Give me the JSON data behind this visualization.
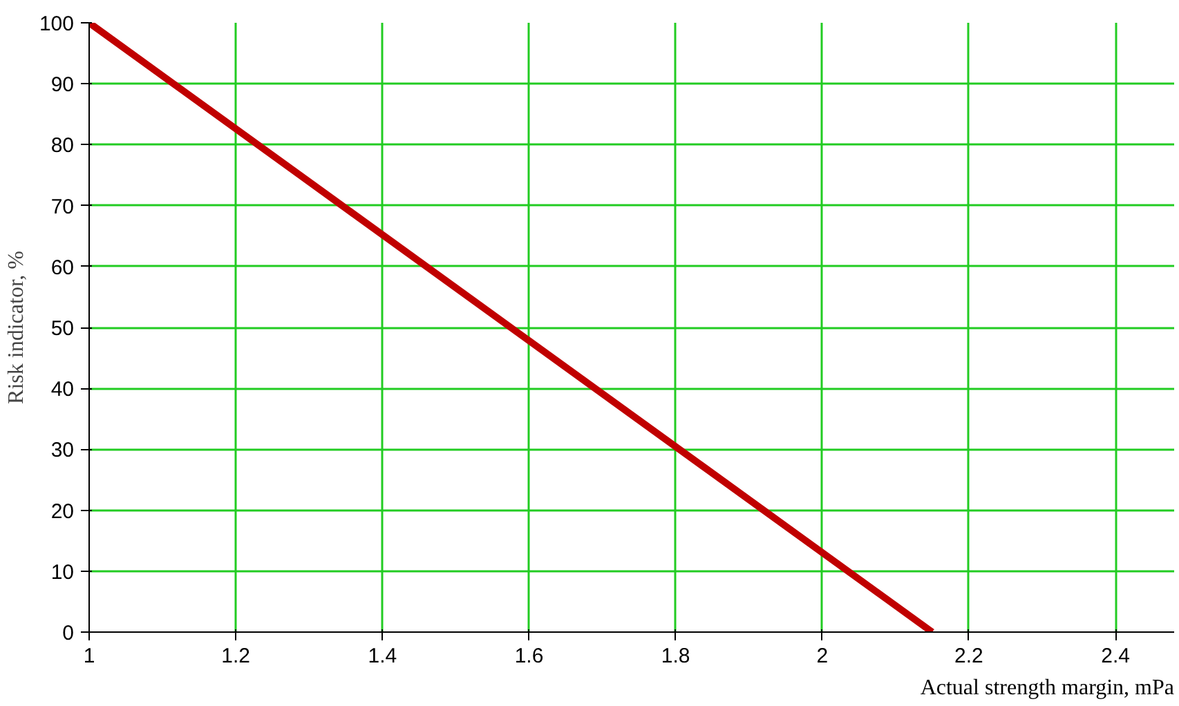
{
  "chart_data": {
    "type": "line",
    "xlabel": "Actual strength margin, mPa",
    "ylabel": "Risk indicator, %",
    "x": [
      1,
      2.15
    ],
    "series": [
      {
        "color": "#c00000",
        "values": [
          100,
          0
        ]
      }
    ],
    "xlim": [
      1,
      2.48
    ],
    "xticks": [
      1,
      1.2,
      1.4,
      1.6,
      1.8,
      2,
      2.2,
      2.4
    ],
    "ylim": [
      0,
      100
    ],
    "yticks": [
      0,
      10,
      20,
      30,
      40,
      50,
      60,
      70,
      80,
      90,
      100
    ],
    "grid": true,
    "marker": "none",
    "line_style": "solid"
  }
}
